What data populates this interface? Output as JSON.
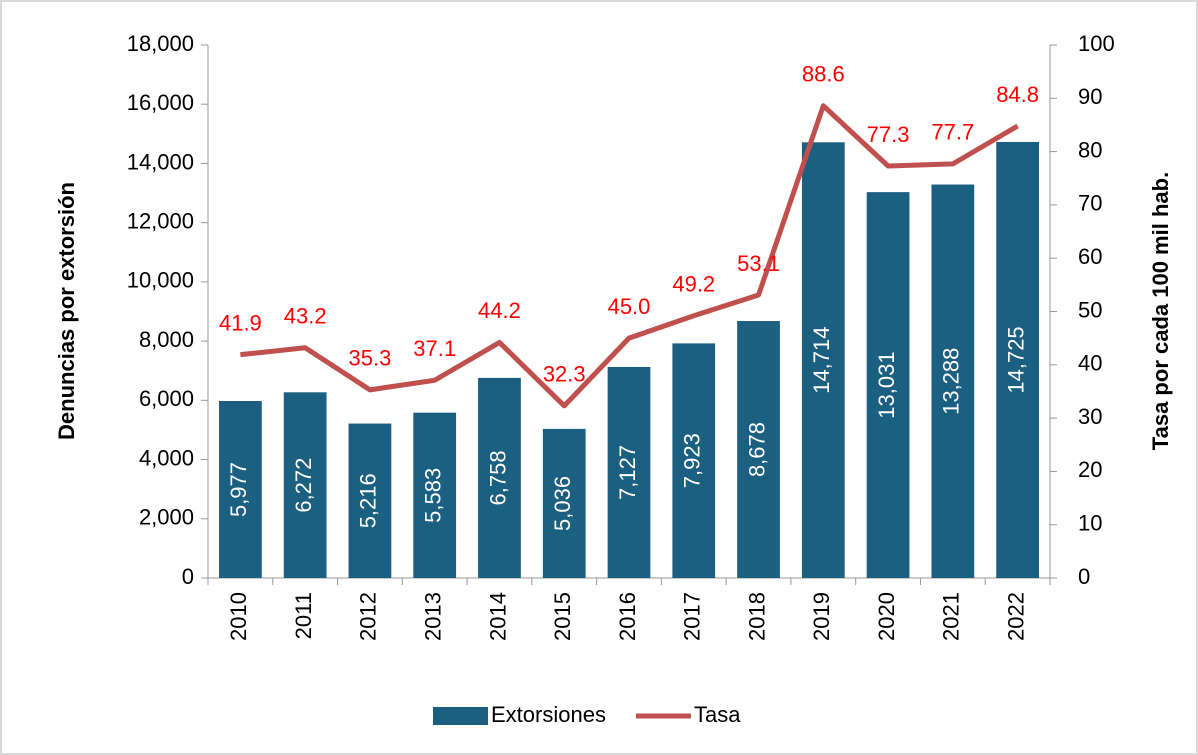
{
  "chart_data": {
    "type": "bar",
    "categories": [
      "2010",
      "2011",
      "2012",
      "2013",
      "2014",
      "2015",
      "2016",
      "2017",
      "2018",
      "2019",
      "2020",
      "2021",
      "2022"
    ],
    "series": [
      {
        "name": "Extorsiones",
        "color": "#1b5f81",
        "values": [
          5977,
          6272,
          5216,
          5583,
          6758,
          5036,
          7127,
          7923,
          8678,
          14714,
          13031,
          13288,
          14725
        ],
        "value_labels": [
          "5,977",
          "6,272",
          "5,216",
          "5,583",
          "6,758",
          "5,036",
          "7,127",
          "7,923",
          "8,678",
          "14,714",
          "13,031",
          "13,288",
          "14,725"
        ]
      },
      {
        "name": "Tasa",
        "type": "line",
        "axis": "y2",
        "color": "#c0504d",
        "label_color": "#ff0000",
        "values": [
          41.9,
          43.2,
          35.3,
          37.1,
          44.2,
          32.3,
          45.0,
          49.2,
          53.1,
          88.6,
          77.3,
          77.7,
          84.8
        ],
        "value_labels": [
          "41.9",
          "43.2",
          "35.3",
          "37.1",
          "44.2",
          "32.3",
          "45.0",
          "49.2",
          "53.1",
          "88.6",
          "77.3",
          "77.7",
          "84.8"
        ]
      }
    ],
    "y_label": "Denuncias por extorsión",
    "y2_label": "Tasa por cada 100 mil hab.",
    "ylim": [
      0,
      18000
    ],
    "yticks": [
      0,
      {
        "value": 2000,
        "label": "2,000"
      },
      {
        "value": 4000,
        "label": "4,000"
      },
      {
        "value": 6000,
        "label": "6,000"
      },
      {
        "value": 8000,
        "label": "8,000"
      },
      {
        "value": 10000,
        "label": "10,000"
      },
      {
        "value": 12000,
        "label": "12,000"
      },
      {
        "value": 14000,
        "label": "14,000"
      },
      {
        "value": 16000,
        "label": "16,000"
      },
      {
        "value": 18000,
        "label": "18,000"
      }
    ],
    "y2lim": [
      0,
      100
    ],
    "y2ticks": [
      0,
      10,
      20,
      30,
      40,
      50,
      60,
      70,
      80,
      90,
      100
    ],
    "legend": "bottom"
  }
}
